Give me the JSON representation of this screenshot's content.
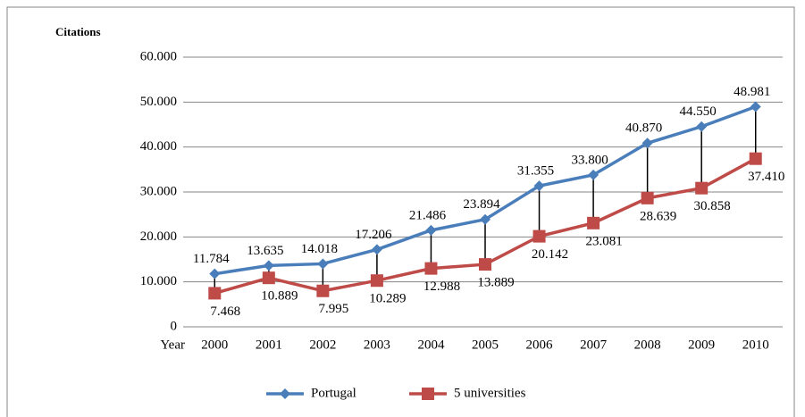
{
  "chart_data": {
    "type": "line",
    "y_label": "Citations",
    "x_label": "Year",
    "categories": [
      "2000",
      "2001",
      "2002",
      "2003",
      "2004",
      "2005",
      "2006",
      "2007",
      "2008",
      "2009",
      "2010"
    ],
    "series": [
      {
        "name": "Portugal",
        "color": "#4a7ebb",
        "marker": "diamond",
        "values": [
          11784,
          13635,
          14018,
          17206,
          21486,
          23894,
          31355,
          33800,
          40870,
          44550,
          48981
        ],
        "value_labels": [
          "11.784",
          "13.635",
          "14.018",
          "17.206",
          "21.486",
          "23.894",
          "31.355",
          "33.800",
          "40.870",
          "44.550",
          "48.981"
        ]
      },
      {
        "name": "5 universities",
        "color": "#be4b48",
        "marker": "square",
        "values": [
          7468,
          10889,
          7995,
          10289,
          12988,
          13889,
          20142,
          23081,
          28639,
          30858,
          37410
        ],
        "value_labels": [
          "7.468",
          "10.889",
          "7.995",
          "10.289",
          "12.988",
          "13.889",
          "20.142",
          "23.081",
          "28.639",
          "30.858",
          "37.410"
        ]
      }
    ],
    "ylim": [
      0,
      60000
    ],
    "yticks": [
      0,
      {
        "value": 10000,
        "label": "10.000"
      },
      {
        "value": 20000,
        "label": "20.000"
      },
      {
        "value": 30000,
        "label": "30.000"
      },
      {
        "value": 40000,
        "label": "40.000"
      },
      {
        "value": 50000,
        "label": "50.000"
      },
      {
        "value": 60000,
        "label": "60.000"
      }
    ],
    "grid": true,
    "high_low_lines": true,
    "legend": "bottom"
  }
}
